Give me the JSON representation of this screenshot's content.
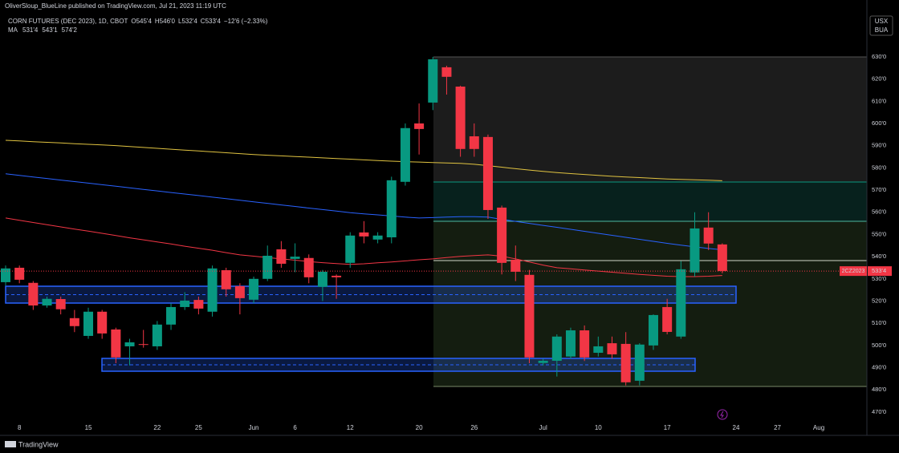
{
  "header": {
    "published": "OliverSloup_BlueLine published on TradingView.com, Jul 21, 2023 11:19 UTC",
    "currency": "USX",
    "unit": "BUA",
    "footer": "TradingView"
  },
  "chart_data": {
    "type": "candlestick",
    "title": "CORN FUTURES (DEC 2023), 1D, CBOT",
    "stats": [
      "O545'4",
      "H546'0",
      "L532'4",
      "C533'4",
      "−12'6 (−2.33%)"
    ],
    "ma_label": "MA",
    "categories": [
      null,
      "8",
      null,
      null,
      null,
      null,
      "15",
      null,
      null,
      null,
      null,
      "22",
      null,
      null,
      "25",
      null,
      null,
      null,
      "Jun",
      null,
      null,
      "6",
      null,
      null,
      null,
      "12",
      null,
      null,
      null,
      null,
      "20",
      null,
      null,
      null,
      "26",
      null,
      null,
      null,
      null,
      "Jul",
      null,
      null,
      null,
      "10",
      null,
      null,
      null,
      null,
      "17",
      null,
      null,
      null,
      null,
      "24",
      null,
      null,
      "27",
      null,
      null,
      "Aug"
    ],
    "open": [
      528.5,
      535,
      528.2,
      518,
      520.9,
      512.3,
      504.3,
      515.2,
      507.2,
      499.6,
      500.6,
      499.6,
      509.4,
      517.3,
      520.5,
      515.2,
      533.9,
      526.7,
      520.6,
      530,
      543.3,
      539,
      539.4,
      526.4,
      531.4,
      537.2,
      550.9,
      547.7,
      548.7,
      573.7,
      600,
      609.4,
      625.3,
      616.6,
      594.2,
      593.9,
      562.1,
      538.6,
      531.8,
      492.1,
      493.1,
      495,
      506.8,
      496.7,
      501,
      500.7,
      484.1,
      500,
      517.3,
      504,
      532.9,
      553.1,
      545.5,
      null,
      null,
      null,
      null,
      null,
      null,
      null
    ],
    "high": [
      536,
      536,
      529,
      522,
      522,
      516,
      517,
      516,
      508,
      503,
      507,
      511,
      519,
      524,
      522,
      536,
      535,
      528,
      531,
      545,
      547,
      546,
      541,
      534,
      532,
      551,
      556,
      551,
      576,
      600,
      609,
      630,
      626,
      617,
      600,
      595,
      563,
      545,
      534,
      494,
      505,
      508,
      509,
      504,
      504,
      506,
      501,
      514,
      521,
      538,
      560,
      560,
      546,
      null,
      null,
      null,
      null,
      null,
      null,
      null
    ],
    "low": [
      527,
      528,
      516,
      517,
      514,
      506,
      503,
      503,
      492,
      491,
      499,
      498,
      507,
      516,
      514,
      513,
      522,
      514,
      519,
      529,
      535,
      533,
      528,
      520,
      521,
      535,
      546,
      546,
      546,
      572,
      586,
      606,
      613,
      585,
      585,
      557,
      532,
      529,
      492,
      491,
      486,
      494,
      493,
      495,
      494,
      482,
      482,
      498,
      505,
      503,
      531,
      543,
      532.5,
      null,
      null,
      null,
      null,
      null,
      null,
      null
    ],
    "close": [
      534.7,
      529.6,
      518,
      521,
      516.3,
      508.7,
      515.2,
      505.4,
      494.6,
      501.4,
      500.4,
      509.4,
      517.3,
      520.2,
      516.6,
      534.7,
      525.3,
      521.3,
      530,
      540.4,
      536.8,
      540,
      530.7,
      533.2,
      530.7,
      549.5,
      549.1,
      549.5,
      574.4,
      597.9,
      597.5,
      628.9,
      621,
      588.5,
      588.5,
      561,
      537.2,
      533.2,
      494.6,
      493.1,
      504,
      506.8,
      494.6,
      499.6,
      496,
      483.4,
      500.4,
      513.7,
      506.1,
      534.3,
      552.7,
      545.9,
      533.5,
      null,
      null,
      null,
      null,
      null,
      null,
      null
    ],
    "up_color": "#089981",
    "down_color": "#f23645",
    "series": [
      {
        "label": "531'4",
        "color": "#f23645",
        "values": [
          557.4,
          556.4,
          555.4,
          554.4,
          553.4,
          552.4,
          551.5,
          550.5,
          549.5,
          548.5,
          547.6,
          546.6,
          545.7,
          544.7,
          543.8,
          542.9,
          541.8,
          540.8,
          540.2,
          539.6,
          539.0,
          538.4,
          537.8,
          537.3,
          536.9,
          536.5,
          536.8,
          537.2,
          537.6,
          538.1,
          538.6,
          539.0,
          539.6,
          540.1,
          540.5,
          540.8,
          540.2,
          539.0,
          537.6,
          536.2,
          535.0,
          534.5,
          534.0,
          533.5,
          533.0,
          532.5,
          532.0,
          531.6,
          531.2,
          531.0,
          531.0,
          531.2,
          531.5,
          null,
          null,
          null,
          null,
          null,
          null,
          null
        ]
      },
      {
        "label": "543'1",
        "color": "#2962ff",
        "values": [
          577.3,
          576.6,
          575.9,
          575.2,
          574.5,
          573.8,
          573.1,
          572.4,
          571.7,
          571.0,
          570.3,
          569.6,
          568.9,
          568.2,
          567.5,
          566.8,
          566.1,
          565.4,
          564.7,
          564.0,
          563.3,
          562.6,
          561.9,
          561.2,
          560.5,
          559.8,
          559.3,
          558.8,
          558.3,
          557.8,
          557.4,
          557.6,
          557.8,
          558.0,
          558.0,
          557.8,
          556.8,
          555.9,
          555.0,
          554.1,
          553.2,
          552.3,
          551.4,
          550.5,
          549.6,
          548.7,
          547.8,
          546.9,
          546.0,
          545.2,
          544.4,
          543.7,
          543.1,
          null,
          null,
          null,
          null,
          null,
          null,
          null
        ]
      },
      {
        "label": "574'2",
        "color": "#e0c341",
        "values": [
          592.4,
          592.1,
          591.8,
          591.5,
          591.2,
          590.9,
          590.6,
          590.3,
          590.0,
          589.6,
          589.2,
          588.8,
          588.4,
          588.0,
          587.6,
          587.2,
          586.8,
          586.4,
          586.0,
          585.7,
          585.4,
          585.1,
          584.8,
          584.5,
          584.2,
          583.9,
          583.6,
          583.3,
          583.0,
          582.8,
          582.6,
          582.4,
          582.2,
          582.0,
          581.6,
          581.0,
          580.3,
          579.6,
          579.0,
          578.4,
          577.9,
          577.4,
          577.0,
          576.6,
          576.2,
          575.9,
          575.6,
          575.3,
          575.0,
          574.8,
          574.6,
          574.4,
          574.2,
          null,
          null,
          null,
          null,
          null,
          null,
          null
        ]
      }
    ],
    "last_price_label": "533'4",
    "symbol_tag": "2CZ2023",
    "ylim": [
      459.5,
      649.1
    ],
    "yticks": [
      {
        "value": 470,
        "label": "470'0"
      },
      {
        "value": 480,
        "label": "480'0"
      },
      {
        "value": 490,
        "label": "490'0"
      },
      {
        "value": 500,
        "label": "500'0"
      },
      {
        "value": 510,
        "label": "510'0"
      },
      {
        "value": 520,
        "label": "520'0"
      },
      {
        "value": 530,
        "label": "530'0"
      },
      {
        "value": 540,
        "label": "540'0"
      },
      {
        "value": 550,
        "label": "550'0"
      },
      {
        "value": 560,
        "label": "560'0"
      },
      {
        "value": 570,
        "label": "570'0"
      },
      {
        "value": 580,
        "label": "580'0"
      },
      {
        "value": 590,
        "label": "590'0"
      },
      {
        "value": 600,
        "label": "600'0"
      },
      {
        "value": 610,
        "label": "610'0"
      },
      {
        "value": 620,
        "label": "620'0"
      },
      {
        "value": 630,
        "label": "630'0"
      }
    ],
    "grid": false
  }
}
